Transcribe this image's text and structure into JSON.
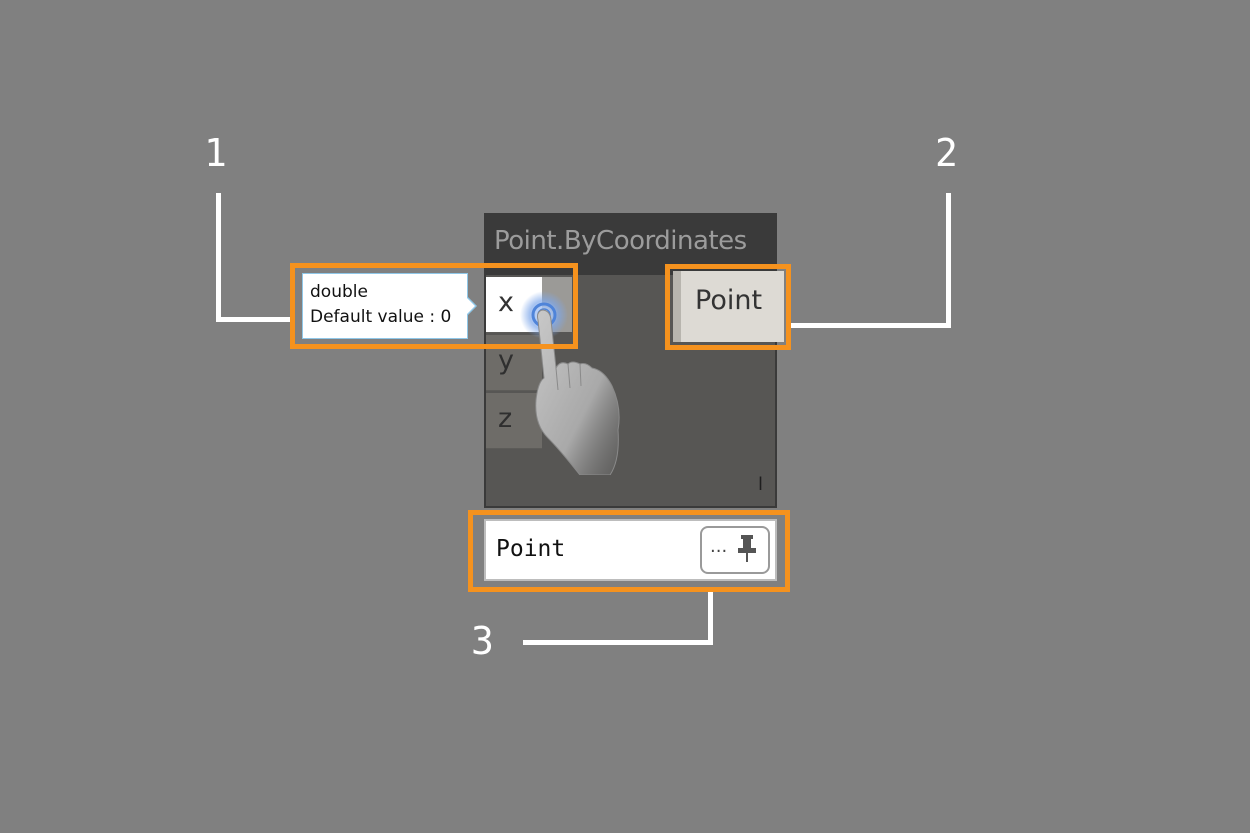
{
  "callouts": {
    "one": "1",
    "two": "2",
    "three": "3"
  },
  "node": {
    "title": "Point.ByCoordinates",
    "inputs": [
      "x",
      "y",
      "z"
    ],
    "output": "Point",
    "lacing": "l"
  },
  "tooltip": {
    "line1": "double",
    "line2": "Default value : 0"
  },
  "preview": {
    "value": "Point",
    "button_dots": "..."
  },
  "colors": {
    "background": "#808080",
    "highlight": "#f5921e",
    "node_header": "#3a3a3a",
    "node_body": "#575654"
  },
  "icons": [
    "touch-hand-icon",
    "pin-icon"
  ]
}
